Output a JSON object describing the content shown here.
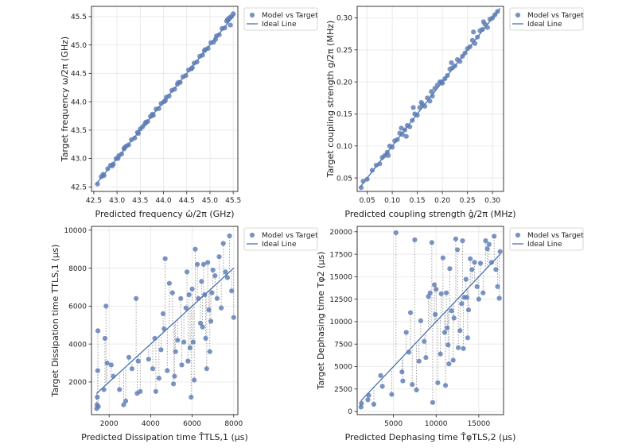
{
  "colors": {
    "marker": "#5b7bb4",
    "ideal": "#4c72b0"
  },
  "chart_data": [
    {
      "type": "scatter",
      "id": "freq",
      "xlabel": "Predicted frequency ω̂/2π (GHz)",
      "ylabel": "Target frequency ω/2π (GHz)",
      "xlim": [
        42.45,
        45.6
      ],
      "ylim": [
        42.42,
        45.68
      ],
      "xticks": [
        42.5,
        43.0,
        43.5,
        44.0,
        44.5,
        45.0,
        45.5
      ],
      "yticks": [
        42.5,
        43.0,
        43.5,
        44.0,
        44.5,
        45.0,
        45.5
      ],
      "xtick_labels": [
        "42.5",
        "43.0",
        "43.5",
        "44.0",
        "44.5",
        "45.0",
        "45.5"
      ],
      "ytick_labels": [
        "42.5",
        "43.0",
        "43.5",
        "44.0",
        "44.5",
        "45.0",
        "45.5"
      ],
      "stems": false,
      "legend": [
        "Model vs Target",
        "Ideal Line"
      ],
      "ideal": [
        [
          42.55,
          42.55
        ],
        [
          45.55,
          45.55
        ]
      ],
      "x": [
        42.58,
        42.66,
        42.72,
        42.8,
        42.86,
        42.92,
        42.98,
        43.04,
        43.1,
        43.15,
        43.2,
        43.25,
        43.31,
        43.38,
        43.44,
        43.5,
        43.55,
        43.6,
        43.66,
        43.72,
        43.78,
        43.84,
        43.9,
        43.95,
        44.01,
        44.06,
        44.12,
        44.18,
        44.24,
        44.3,
        44.36,
        44.42,
        44.48,
        44.54,
        44.6,
        44.66,
        44.72,
        44.78,
        44.84,
        44.9,
        44.96,
        45.02,
        45.08,
        45.14,
        45.2,
        45.26,
        45.32,
        45.38,
        45.42,
        45.46,
        45.5,
        45.44,
        45.36,
        45.12,
        44.88,
        44.62,
        44.32,
        44.04,
        43.76,
        43.46,
        43.16,
        42.9,
        42.7,
        43.02,
        43.62
      ],
      "y": [
        42.55,
        42.68,
        42.7,
        42.82,
        42.88,
        42.9,
        43.0,
        43.05,
        43.08,
        43.17,
        43.22,
        43.24,
        43.33,
        43.36,
        43.46,
        43.52,
        43.56,
        43.61,
        43.65,
        43.74,
        43.76,
        43.87,
        43.88,
        43.97,
        44.0,
        44.08,
        44.1,
        44.2,
        44.22,
        44.31,
        44.34,
        44.44,
        44.46,
        44.56,
        44.58,
        44.68,
        44.7,
        44.8,
        44.82,
        44.92,
        44.94,
        45.04,
        45.05,
        45.16,
        45.18,
        45.29,
        45.3,
        45.45,
        45.48,
        45.5,
        45.55,
        45.35,
        45.42,
        45.1,
        44.9,
        44.6,
        44.34,
        44.02,
        43.78,
        43.44,
        43.19,
        42.87,
        42.72,
        43.0,
        43.64
      ]
    },
    {
      "type": "scatter",
      "id": "coupling",
      "xlabel": "Predicted coupling strength ĝ/2π (MHz)",
      "ylabel": "Target coupling strength g/2π (MHz)",
      "xlim": [
        0.03,
        0.322
      ],
      "ylim": [
        0.029,
        0.318
      ],
      "xticks": [
        0.05,
        0.1,
        0.15,
        0.2,
        0.25,
        0.3
      ],
      "yticks": [
        0.05,
        0.1,
        0.15,
        0.2,
        0.25,
        0.3
      ],
      "xtick_labels": [
        "0.05",
        "0.10",
        "0.15",
        "0.20",
        "0.25",
        "0.30"
      ],
      "ytick_labels": [
        "0.05",
        "0.10",
        "0.15",
        "0.20",
        "0.25",
        "0.30"
      ],
      "stems": false,
      "legend": [
        "Model vs Target",
        "Ideal Line"
      ],
      "ideal": [
        [
          0.035,
          0.035
        ],
        [
          0.315,
          0.315
        ]
      ],
      "x": [
        0.038,
        0.042,
        0.05,
        0.06,
        0.068,
        0.075,
        0.08,
        0.085,
        0.09,
        0.095,
        0.1,
        0.105,
        0.11,
        0.115,
        0.12,
        0.125,
        0.13,
        0.135,
        0.14,
        0.145,
        0.15,
        0.155,
        0.16,
        0.165,
        0.17,
        0.175,
        0.18,
        0.185,
        0.19,
        0.195,
        0.2,
        0.205,
        0.21,
        0.215,
        0.22,
        0.225,
        0.23,
        0.235,
        0.24,
        0.245,
        0.25,
        0.255,
        0.26,
        0.265,
        0.27,
        0.275,
        0.28,
        0.285,
        0.29,
        0.295,
        0.3,
        0.305,
        0.31,
        0.118,
        0.142,
        0.158,
        0.178,
        0.198,
        0.218,
        0.262,
        0.282,
        0.128,
        0.092
      ],
      "y": [
        0.035,
        0.045,
        0.048,
        0.062,
        0.07,
        0.072,
        0.082,
        0.085,
        0.09,
        0.1,
        0.098,
        0.108,
        0.11,
        0.12,
        0.118,
        0.125,
        0.132,
        0.13,
        0.14,
        0.15,
        0.148,
        0.16,
        0.165,
        0.162,
        0.175,
        0.17,
        0.178,
        0.19,
        0.195,
        0.2,
        0.198,
        0.205,
        0.21,
        0.22,
        0.222,
        0.225,
        0.235,
        0.232,
        0.24,
        0.245,
        0.252,
        0.255,
        0.265,
        0.26,
        0.27,
        0.28,
        0.282,
        0.29,
        0.285,
        0.298,
        0.3,
        0.305,
        0.31,
        0.128,
        0.16,
        0.168,
        0.185,
        0.2,
        0.23,
        0.278,
        0.294,
        0.115,
        0.085
      ]
    },
    {
      "type": "scatter",
      "id": "dissipation",
      "xlabel": "Predicted Dissipation time T̂TLS,1 (μs)",
      "ylabel": "Target Dissipation time TTLS,1 (μs)",
      "xlim": [
        1150,
        8200
      ],
      "ylim": [
        280,
        10200
      ],
      "xticks": [
        2000,
        4000,
        6000,
        8000
      ],
      "yticks": [
        2000,
        4000,
        6000,
        8000,
        10000
      ],
      "xtick_labels": [
        "2000",
        "4000",
        "6000",
        "8000"
      ],
      "ytick_labels": [
        "2000",
        "4000",
        "6000",
        "8000",
        "10000"
      ],
      "stems": true,
      "legend": [
        "Model vs Target",
        "Ideal Line"
      ],
      "ideal": [
        [
          1400,
          1400
        ],
        [
          8000,
          8000
        ]
      ],
      "x": [
        1400,
        1420,
        1430,
        1450,
        1460,
        1480,
        1750,
        1800,
        1850,
        1900,
        2100,
        2200,
        2500,
        2700,
        2800,
        2950,
        3100,
        3300,
        3350,
        3400,
        3500,
        3900,
        4100,
        4200,
        4250,
        4400,
        4500,
        4600,
        4650,
        4700,
        4800,
        4900,
        5050,
        5100,
        5150,
        5200,
        5300,
        5450,
        5500,
        5600,
        5700,
        5750,
        5800,
        5850,
        5900,
        5950,
        6000,
        6050,
        6100,
        6150,
        6250,
        6300,
        6400,
        6450,
        6500,
        6550,
        6600,
        6650,
        6700,
        6750,
        6800,
        6850,
        6900,
        6950,
        7000,
        7100,
        7200,
        7300,
        7400,
        7500,
        7600,
        7700,
        7800,
        7900,
        8000
      ],
      "y": [
        600,
        800,
        1200,
        2600,
        4700,
        700,
        1600,
        4300,
        6000,
        3000,
        2900,
        2300,
        1600,
        800,
        1000,
        3300,
        2700,
        6400,
        1400,
        3100,
        1500,
        3200,
        2700,
        4300,
        1500,
        2200,
        3700,
        5600,
        4800,
        8500,
        2600,
        7200,
        6700,
        1900,
        2300,
        3600,
        4200,
        6400,
        2900,
        4100,
        5900,
        7800,
        3100,
        6600,
        3800,
        1200,
        6900,
        4100,
        2100,
        9000,
        8200,
        6400,
        5100,
        7300,
        4900,
        8200,
        6600,
        4300,
        2700,
        8300,
        5800,
        3600,
        5200,
        6700,
        7900,
        7600,
        6400,
        8600,
        5900,
        9300,
        7800,
        7500,
        9700,
        6800,
        5400
      ]
    },
    {
      "type": "scatter",
      "id": "dephasing",
      "xlabel": "Predicted Dephasing time T̂φTLS,2 (μs)",
      "ylabel": "Target Dephasing time Tφ2 (μs)",
      "xlim": [
        750,
        17900
      ],
      "ylim": [
        -350,
        20600
      ],
      "xticks": [
        5000,
        10000,
        15000
      ],
      "yticks": [
        0,
        2500,
        5000,
        7500,
        10000,
        12500,
        15000,
        17500,
        20000
      ],
      "xtick_labels": [
        "5000",
        "10000",
        "15000"
      ],
      "ytick_labels": [
        "0",
        "2500",
        "5000",
        "7500",
        "10000",
        "12500",
        "15000",
        "17500",
        "20000"
      ],
      "stems": true,
      "legend": [
        "Model vs Target",
        "Ideal Line"
      ],
      "ideal": [
        [
          1200,
          1200
        ],
        [
          17500,
          17500
        ]
      ],
      "x": [
        1200,
        1250,
        2000,
        2100,
        2700,
        3500,
        3700,
        4800,
        5300,
        6000,
        6100,
        6500,
        6800,
        7000,
        7200,
        7500,
        7700,
        8000,
        8200,
        8600,
        8800,
        9100,
        9300,
        9500,
        9600,
        9800,
        9900,
        10000,
        10200,
        10500,
        10600,
        10800,
        11000,
        11100,
        11200,
        11300,
        11400,
        11500,
        11600,
        11800,
        12000,
        12100,
        12300,
        12500,
        12600,
        12800,
        13000,
        13100,
        13200,
        13300,
        13500,
        13600,
        13700,
        13800,
        14000,
        14200,
        14500,
        14800,
        15000,
        15200,
        15500,
        15800,
        16000,
        16200,
        16500,
        16800,
        17000,
        17200,
        17400,
        17500
      ],
      "y": [
        500,
        900,
        1300,
        1800,
        800,
        4000,
        2800,
        1900,
        19900,
        4400,
        3400,
        8800,
        6600,
        11000,
        3000,
        19100,
        2400,
        5600,
        10100,
        7800,
        6000,
        12800,
        13200,
        18800,
        1000,
        14100,
        10800,
        13600,
        3200,
        6400,
        13100,
        17100,
        8800,
        2900,
        13200,
        9300,
        7400,
        5300,
        15900,
        11200,
        5700,
        10400,
        19200,
        18000,
        7100,
        9000,
        12000,
        19000,
        7000,
        12700,
        14700,
        12700,
        8200,
        11300,
        17000,
        15800,
        16600,
        13900,
        12500,
        16500,
        13200,
        19000,
        18100,
        18600,
        16600,
        19500,
        15800,
        13900,
        12600,
        17800
      ]
    }
  ]
}
